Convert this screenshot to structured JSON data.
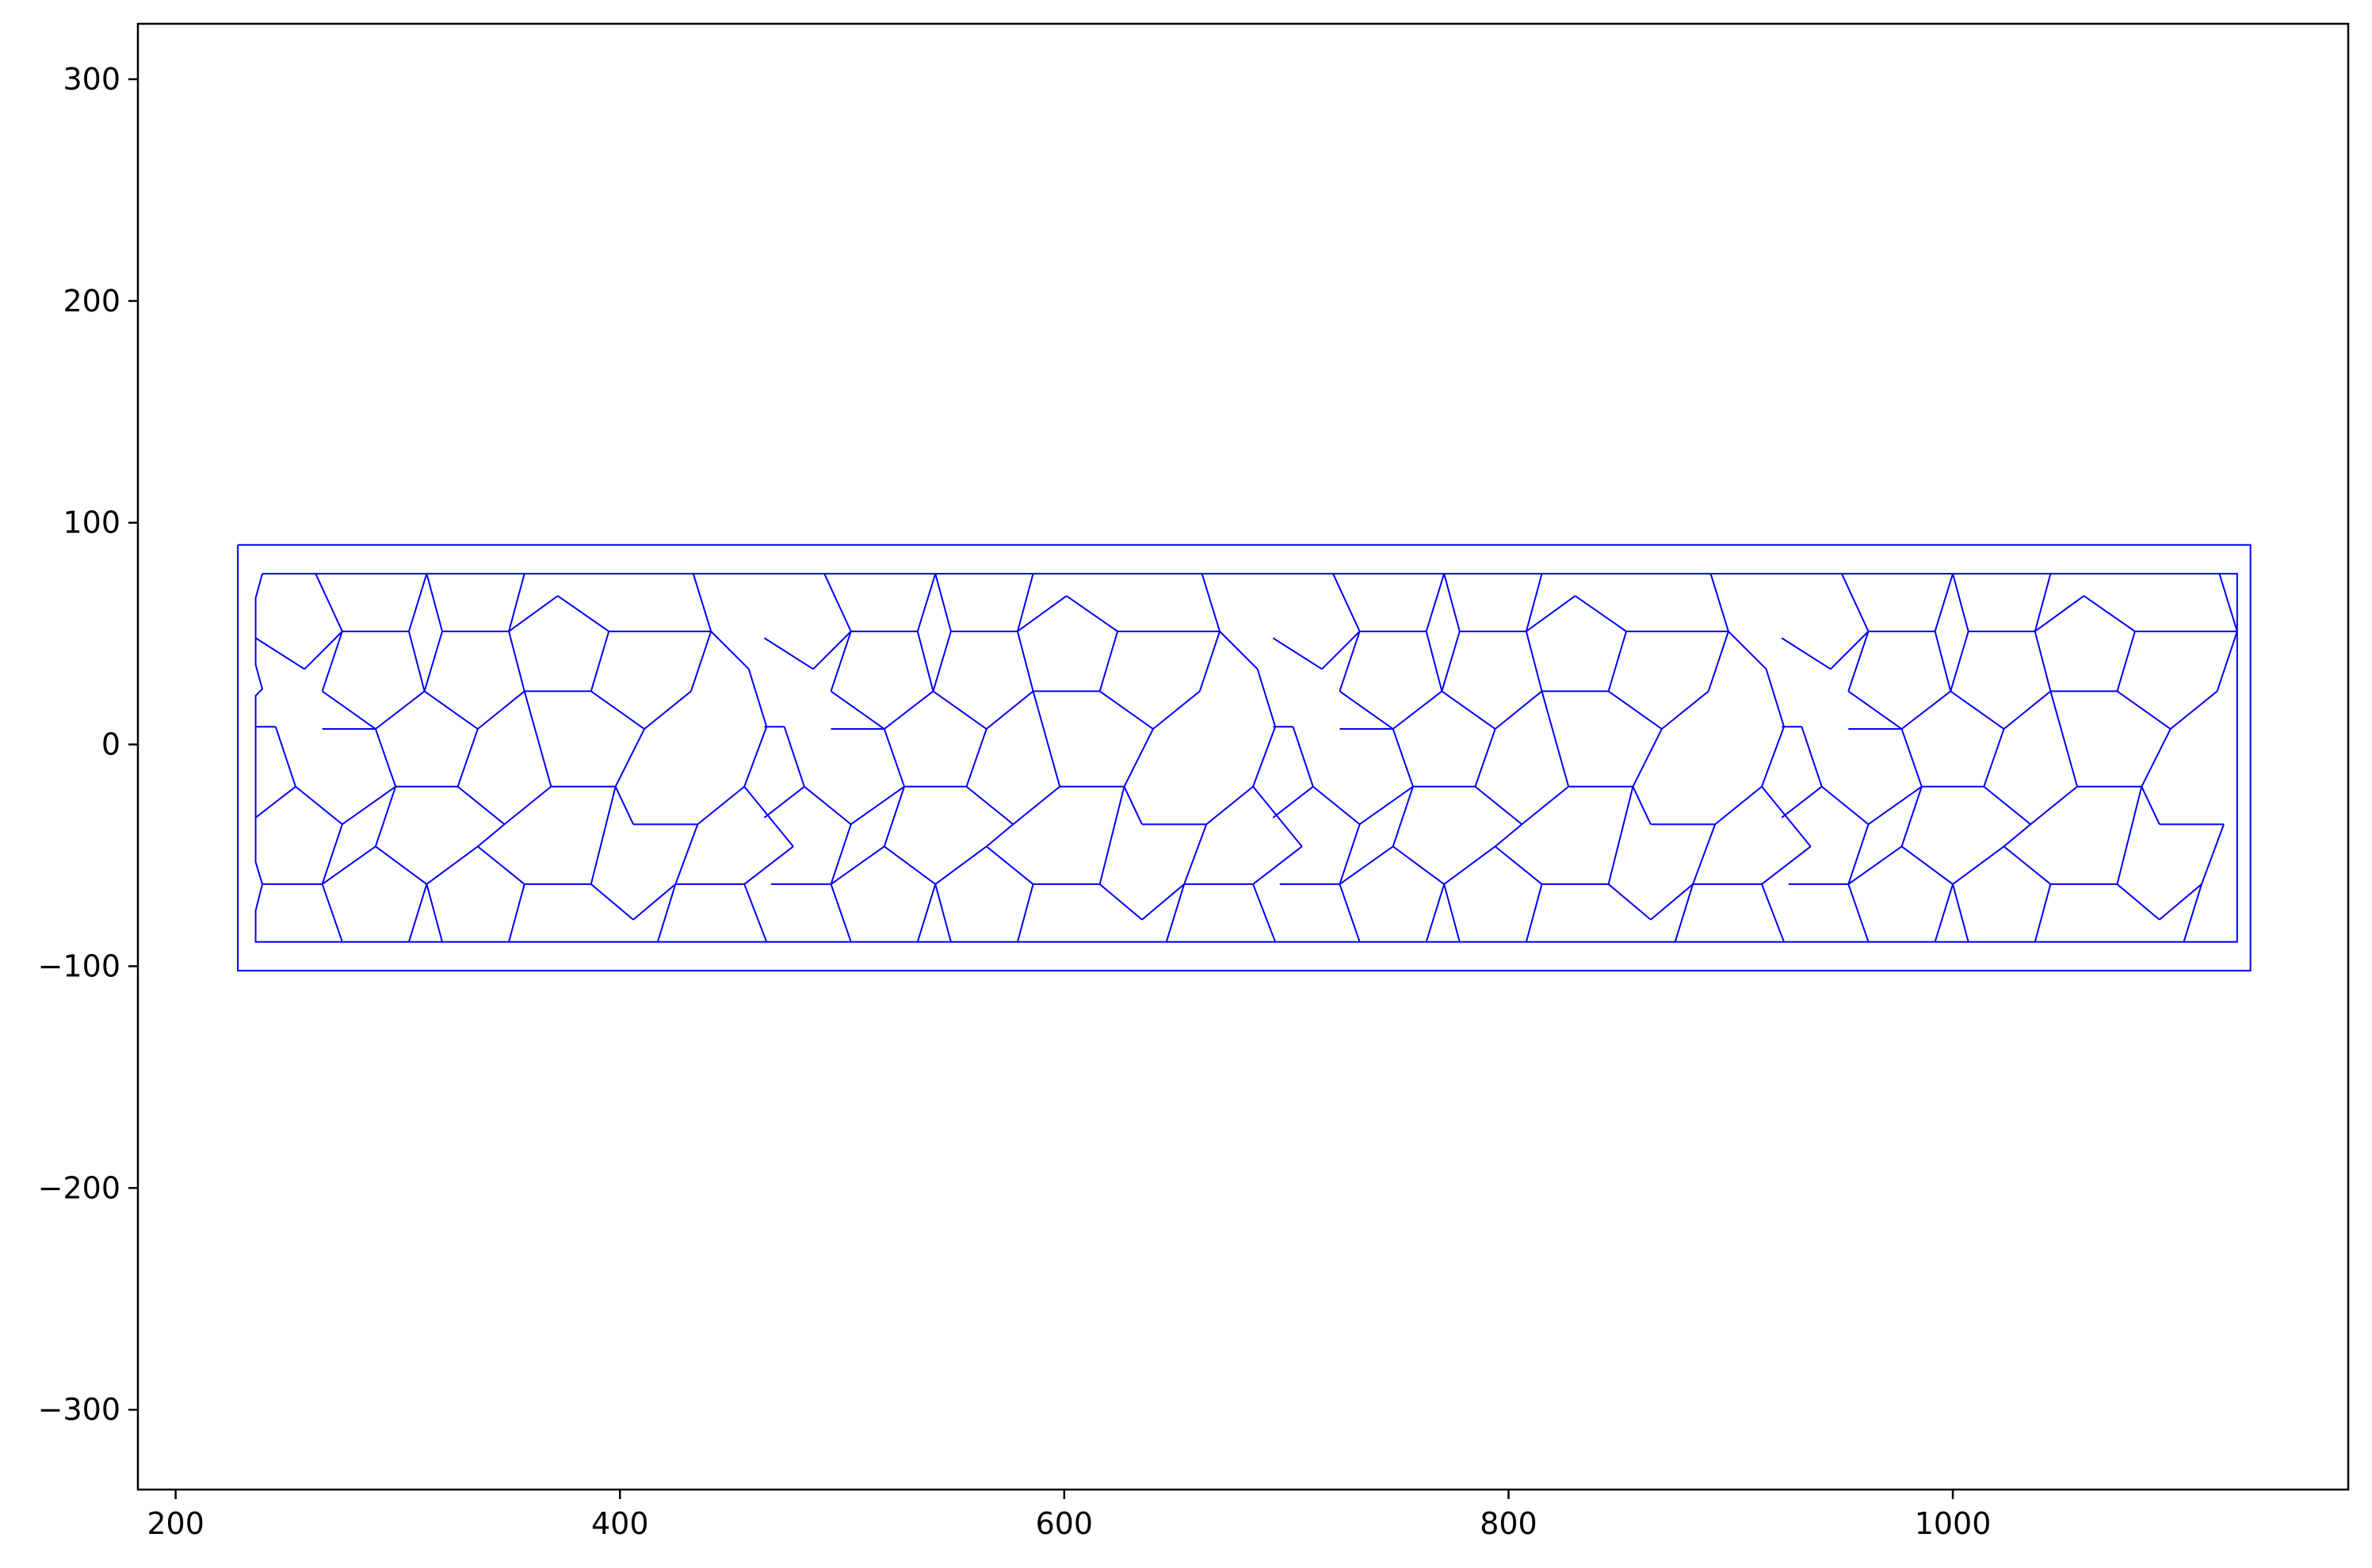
{
  "chart_data": {
    "type": "line",
    "title": "",
    "xlabel": "",
    "ylabel": "",
    "xlim": [
      183,
      1178
    ],
    "ylim": [
      -336,
      325
    ],
    "x_ticks": [
      {
        "value": 200,
        "label": "200"
      },
      {
        "value": 400,
        "label": "400"
      },
      {
        "value": 600,
        "label": "600"
      },
      {
        "value": 800,
        "label": "800"
      },
      {
        "value": 1000,
        "label": "1000"
      }
    ],
    "y_ticks": [
      {
        "value": 300,
        "label": "300"
      },
      {
        "value": 200,
        "label": "200"
      },
      {
        "value": 100,
        "label": "100"
      },
      {
        "value": 0,
        "label": "0"
      },
      {
        "value": -100,
        "label": "−100"
      },
      {
        "value": -200,
        "label": "−200"
      },
      {
        "value": -300,
        "label": "−300"
      }
    ],
    "grid": false,
    "legend": "none",
    "line_color": "#0000ff",
    "series": [
      {
        "values": [
          [
            228,
            90
          ],
          [
            1134,
            90
          ],
          [
            1134,
            -102
          ],
          [
            228,
            -102
          ],
          [
            228,
            90
          ]
        ]
      },
      {
        "values": [
          [
            239,
            77
          ],
          [
            1128,
            77
          ],
          [
            1128,
            -89
          ],
          [
            236,
            -89
          ],
          [
            236,
            -75
          ],
          [
            239,
            -63
          ],
          [
            236,
            -53
          ],
          [
            236,
            -33
          ],
          [
            236,
            8
          ],
          [
            236,
            22
          ],
          [
            239,
            25
          ],
          [
            236,
            36
          ],
          [
            236,
            66
          ],
          [
            239,
            77
          ]
        ]
      }
    ],
    "tiling": {
      "x_period": 229,
      "repeats": [
        0,
        229,
        458,
        687
      ],
      "segments": [
        [
          [
            263,
            77
          ],
          [
            275,
            51
          ]
        ],
        [
          [
            275,
            51
          ],
          [
            305,
            51
          ]
        ],
        [
          [
            305,
            51
          ],
          [
            313,
            77
          ]
        ],
        [
          [
            313,
            77
          ],
          [
            320,
            51
          ]
        ],
        [
          [
            320,
            51
          ],
          [
            350,
            51
          ]
        ],
        [
          [
            350,
            51
          ],
          [
            357,
            77
          ]
        ],
        [
          [
            236,
            48
          ],
          [
            258,
            34
          ]
        ],
        [
          [
            258,
            34
          ],
          [
            275,
            51
          ]
        ],
        [
          [
            275,
            51
          ],
          [
            266,
            24
          ]
        ],
        [
          [
            266,
            24
          ],
          [
            290,
            7
          ]
        ],
        [
          [
            290,
            7
          ],
          [
            312,
            24
          ]
        ],
        [
          [
            312,
            24
          ],
          [
            305,
            51
          ]
        ],
        [
          [
            312,
            24
          ],
          [
            320,
            51
          ]
        ],
        [
          [
            312,
            24
          ],
          [
            336,
            7
          ]
        ],
        [
          [
            336,
            7
          ],
          [
            357,
            24
          ]
        ],
        [
          [
            357,
            24
          ],
          [
            350,
            51
          ]
        ],
        [
          [
            350,
            51
          ],
          [
            372,
            67
          ]
        ],
        [
          [
            372,
            67
          ],
          [
            395,
            51
          ]
        ],
        [
          [
            395,
            51
          ],
          [
            387,
            24
          ]
        ],
        [
          [
            387,
            24
          ],
          [
            357,
            24
          ]
        ],
        [
          [
            387,
            24
          ],
          [
            411,
            7
          ]
        ],
        [
          [
            411,
            7
          ],
          [
            432,
            24
          ]
        ],
        [
          [
            432,
            24
          ],
          [
            441,
            51
          ]
        ],
        [
          [
            395,
            51
          ],
          [
            441,
            51
          ]
        ],
        [
          [
            441,
            51
          ],
          [
            458,
            34
          ]
        ],
        [
          [
            441,
            51
          ],
          [
            433,
            77
          ]
        ],
        [
          [
            236,
            8
          ],
          [
            245,
            8
          ]
        ],
        [
          [
            245,
            8
          ],
          [
            254,
            -19
          ]
        ],
        [
          [
            254,
            -19
          ],
          [
            236,
            -33
          ]
        ],
        [
          [
            254,
            -19
          ],
          [
            275,
            -36
          ]
        ],
        [
          [
            275,
            -36
          ],
          [
            299,
            -19
          ]
        ],
        [
          [
            299,
            -19
          ],
          [
            290,
            7
          ]
        ],
        [
          [
            299,
            -19
          ],
          [
            327,
            -19
          ]
        ],
        [
          [
            327,
            -19
          ],
          [
            336,
            7
          ]
        ],
        [
          [
            327,
            -19
          ],
          [
            348,
            -36
          ]
        ],
        [
          [
            348,
            -36
          ],
          [
            369,
            -19
          ]
        ],
        [
          [
            369,
            -19
          ],
          [
            357,
            24
          ]
        ],
        [
          [
            369,
            -19
          ],
          [
            398,
            -19
          ]
        ],
        [
          [
            398,
            -19
          ],
          [
            411,
            7
          ]
        ],
        [
          [
            398,
            -19
          ],
          [
            406,
            -36
          ]
        ],
        [
          [
            406,
            -36
          ],
          [
            435,
            -36
          ]
        ],
        [
          [
            435,
            -36
          ],
          [
            456,
            -19
          ]
        ],
        [
          [
            456,
            -19
          ],
          [
            466,
            8
          ]
        ],
        [
          [
            466,
            8
          ],
          [
            458,
            34
          ]
        ],
        [
          [
            266,
            7
          ],
          [
            290,
            7
          ]
        ],
        [
          [
            239,
            -63
          ],
          [
            266,
            -63
          ]
        ],
        [
          [
            266,
            -63
          ],
          [
            275,
            -89
          ]
        ],
        [
          [
            266,
            -63
          ],
          [
            275,
            -36
          ]
        ],
        [
          [
            266,
            -63
          ],
          [
            290,
            -46
          ]
        ],
        [
          [
            290,
            -46
          ],
          [
            299,
            -19
          ]
        ],
        [
          [
            290,
            -46
          ],
          [
            313,
            -63
          ]
        ],
        [
          [
            313,
            -63
          ],
          [
            320,
            -89
          ]
        ],
        [
          [
            313,
            -63
          ],
          [
            305,
            -89
          ]
        ],
        [
          [
            313,
            -63
          ],
          [
            336,
            -46
          ]
        ],
        [
          [
            336,
            -46
          ],
          [
            348,
            -36
          ]
        ],
        [
          [
            336,
            -46
          ],
          [
            357,
            -63
          ]
        ],
        [
          [
            357,
            -63
          ],
          [
            387,
            -63
          ]
        ],
        [
          [
            357,
            -63
          ],
          [
            350,
            -89
          ]
        ],
        [
          [
            387,
            -63
          ],
          [
            398,
            -19
          ]
        ],
        [
          [
            387,
            -63
          ],
          [
            406,
            -79
          ]
        ],
        [
          [
            406,
            -79
          ],
          [
            425,
            -63
          ]
        ],
        [
          [
            425,
            -63
          ],
          [
            435,
            -36
          ]
        ],
        [
          [
            425,
            -63
          ],
          [
            456,
            -63
          ]
        ],
        [
          [
            425,
            -63
          ],
          [
            417,
            -89
          ]
        ],
        [
          [
            456,
            -63
          ],
          [
            466,
            -89
          ]
        ],
        [
          [
            456,
            -63
          ],
          [
            478,
            -46
          ]
        ],
        [
          [
            478,
            -46
          ],
          [
            456,
            -19
          ]
        ]
      ]
    }
  }
}
